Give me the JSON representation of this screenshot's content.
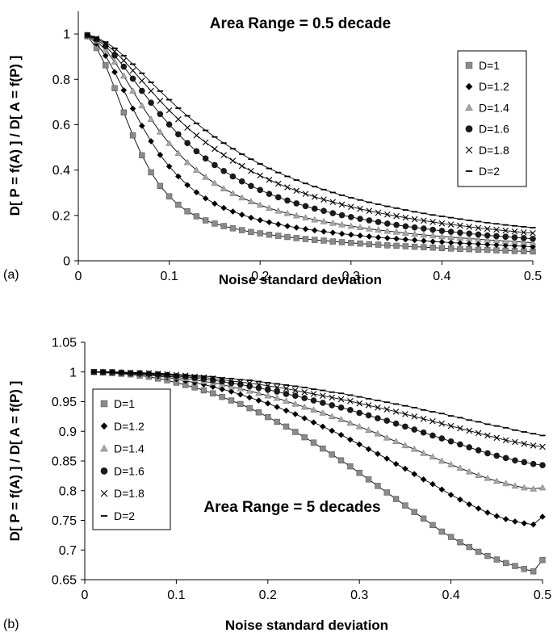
{
  "chart_data": [
    {
      "type": "scatter",
      "panel_label": "(a)",
      "title": "Area Range = 0.5 decade",
      "xlabel": "Noise standard deviation",
      "ylabel": "D[ P = f(A) ]  /  D[ A = f(P) ]",
      "xlim": [
        0,
        0.5
      ],
      "ylim": [
        0,
        1.1
      ],
      "xticks": [
        0,
        0.1,
        0.2,
        0.3,
        0.4,
        0.5
      ],
      "yticks": [
        0,
        0.2,
        0.4,
        0.6,
        0.8,
        1
      ],
      "xtick_labels": [
        "0",
        "0.1",
        "0.2",
        "0.3",
        "0.4",
        "0.5"
      ],
      "ytick_labels": [
        "0",
        "0.2",
        "0.4",
        "0.6",
        "0.8",
        "1"
      ],
      "grid": false,
      "fit_lines": true,
      "legend_position": "top-right",
      "x": [
        0.01,
        0.02,
        0.03,
        0.04,
        0.05,
        0.06,
        0.07,
        0.08,
        0.09,
        0.1,
        0.11,
        0.12,
        0.13,
        0.14,
        0.15,
        0.16,
        0.17,
        0.18,
        0.19,
        0.2,
        0.21,
        0.22,
        0.23,
        0.24,
        0.25,
        0.26,
        0.27,
        0.28,
        0.29,
        0.3,
        0.31,
        0.32,
        0.33,
        0.34,
        0.35,
        0.36,
        0.37,
        0.38,
        0.39,
        0.4,
        0.41,
        0.42,
        0.43,
        0.44,
        0.45,
        0.46,
        0.47,
        0.48,
        0.49,
        0.5
      ],
      "series": [
        {
          "name": "D=1",
          "marker": "square",
          "values": [
            0.99,
            0.938,
            0.862,
            0.761,
            0.654,
            0.553,
            0.465,
            0.39,
            0.33,
            0.284,
            0.247,
            0.218,
            0.196,
            0.178,
            0.164,
            0.153,
            0.143,
            0.135,
            0.127,
            0.121,
            0.115,
            0.11,
            0.105,
            0.1,
            0.096,
            0.092,
            0.089,
            0.085,
            0.082,
            0.079,
            0.076,
            0.073,
            0.071,
            0.068,
            0.066,
            0.064,
            0.062,
            0.06,
            0.058,
            0.056,
            0.054,
            0.052,
            0.051,
            0.049,
            0.048,
            0.046,
            0.045,
            0.043,
            0.042,
            0.041
          ]
        },
        {
          "name": "D=1.2",
          "marker": "diamond",
          "values": [
            0.993,
            0.958,
            0.904,
            0.832,
            0.752,
            0.671,
            0.595,
            0.527,
            0.467,
            0.416,
            0.372,
            0.334,
            0.302,
            0.275,
            0.252,
            0.233,
            0.217,
            0.203,
            0.19,
            0.179,
            0.17,
            0.161,
            0.153,
            0.146,
            0.14,
            0.134,
            0.129,
            0.124,
            0.119,
            0.115,
            0.111,
            0.107,
            0.103,
            0.1,
            0.097,
            0.094,
            0.091,
            0.088,
            0.085,
            0.083,
            0.08,
            0.078,
            0.076,
            0.074,
            0.072,
            0.07,
            0.068,
            0.066,
            0.064,
            0.062
          ]
        },
        {
          "name": "D=1.4",
          "marker": "triangle",
          "values": [
            0.994,
            0.969,
            0.93,
            0.877,
            0.815,
            0.749,
            0.684,
            0.624,
            0.568,
            0.518,
            0.474,
            0.434,
            0.4,
            0.369,
            0.342,
            0.318,
            0.297,
            0.278,
            0.261,
            0.246,
            0.232,
            0.22,
            0.209,
            0.199,
            0.19,
            0.181,
            0.173,
            0.166,
            0.159,
            0.153,
            0.147,
            0.141,
            0.136,
            0.131,
            0.127,
            0.122,
            0.118,
            0.114,
            0.111,
            0.107,
            0.104,
            0.101,
            0.098,
            0.095,
            0.092,
            0.09,
            0.087,
            0.085,
            0.082,
            0.08
          ]
        },
        {
          "name": "D=1.6",
          "marker": "circle",
          "values": [
            0.995,
            0.976,
            0.946,
            0.905,
            0.856,
            0.803,
            0.749,
            0.697,
            0.647,
            0.601,
            0.558,
            0.519,
            0.483,
            0.451,
            0.422,
            0.396,
            0.372,
            0.35,
            0.33,
            0.312,
            0.295,
            0.28,
            0.266,
            0.253,
            0.241,
            0.23,
            0.22,
            0.21,
            0.201,
            0.193,
            0.185,
            0.178,
            0.171,
            0.164,
            0.158,
            0.152,
            0.147,
            0.142,
            0.137,
            0.132,
            0.128,
            0.124,
            0.12,
            0.116,
            0.112,
            0.109,
            0.106,
            0.103,
            0.1,
            0.097
          ]
        },
        {
          "name": "D=1.8",
          "marker": "cross",
          "values": [
            0.996,
            0.98,
            0.956,
            0.923,
            0.883,
            0.839,
            0.794,
            0.749,
            0.705,
            0.663,
            0.624,
            0.587,
            0.553,
            0.522,
            0.493,
            0.466,
            0.441,
            0.418,
            0.396,
            0.376,
            0.357,
            0.34,
            0.324,
            0.309,
            0.295,
            0.282,
            0.27,
            0.259,
            0.248,
            0.238,
            0.229,
            0.22,
            0.212,
            0.204,
            0.197,
            0.19,
            0.183,
            0.177,
            0.171,
            0.165,
            0.16,
            0.155,
            0.15,
            0.145,
            0.141,
            0.137,
            0.133,
            0.129,
            0.125,
            0.122
          ]
        },
        {
          "name": "D=2",
          "marker": "dash",
          "values": [
            0.997,
            0.984,
            0.964,
            0.937,
            0.904,
            0.867,
            0.827,
            0.787,
            0.748,
            0.71,
            0.673,
            0.639,
            0.606,
            0.575,
            0.546,
            0.519,
            0.494,
            0.47,
            0.448,
            0.427,
            0.407,
            0.389,
            0.372,
            0.356,
            0.341,
            0.327,
            0.314,
            0.301,
            0.289,
            0.278,
            0.268,
            0.258,
            0.249,
            0.24,
            0.232,
            0.224,
            0.216,
            0.209,
            0.202,
            0.196,
            0.19,
            0.184,
            0.178,
            0.173,
            0.168,
            0.163,
            0.158,
            0.154,
            0.15,
            0.146
          ]
        }
      ]
    },
    {
      "type": "scatter",
      "panel_label": "(b)",
      "title": "Area Range = 5 decades",
      "xlabel": "Noise standard deviation",
      "ylabel": "D[ P = f(A) ]  /  D[ A = f(P) ]",
      "xlim": [
        0,
        0.5
      ],
      "ylim": [
        0.65,
        1.05
      ],
      "xticks": [
        0,
        0.1,
        0.2,
        0.3,
        0.4,
        0.5
      ],
      "yticks": [
        0.65,
        0.7,
        0.75,
        0.8,
        0.85,
        0.9,
        0.95,
        1,
        1.05
      ],
      "xtick_labels": [
        "0",
        "0.1",
        "0.2",
        "0.3",
        "0.4",
        "0.5"
      ],
      "ytick_labels": [
        "0.65",
        "0.7",
        "0.75",
        "0.8",
        "0.85",
        "0.9",
        "0.95",
        "1",
        "1.05"
      ],
      "grid": false,
      "fit_lines": true,
      "legend_position": "bottom-left",
      "x": [
        0.01,
        0.02,
        0.03,
        0.04,
        0.05,
        0.06,
        0.07,
        0.08,
        0.09,
        0.1,
        0.11,
        0.12,
        0.13,
        0.14,
        0.15,
        0.16,
        0.17,
        0.18,
        0.19,
        0.2,
        0.21,
        0.22,
        0.23,
        0.24,
        0.25,
        0.26,
        0.27,
        0.28,
        0.29,
        0.3,
        0.31,
        0.32,
        0.33,
        0.34,
        0.35,
        0.36,
        0.37,
        0.38,
        0.39,
        0.4,
        0.41,
        0.42,
        0.43,
        0.44,
        0.45,
        0.46,
        0.47,
        0.48,
        0.49,
        0.5
      ],
      "series": [
        {
          "name": "D=1",
          "marker": "square",
          "values": [
            1.0,
            0.999,
            0.998,
            0.997,
            0.996,
            0.994,
            0.992,
            0.989,
            0.986,
            0.982,
            0.978,
            0.974,
            0.969,
            0.964,
            0.958,
            0.952,
            0.946,
            0.939,
            0.932,
            0.924,
            0.916,
            0.908,
            0.899,
            0.89,
            0.881,
            0.871,
            0.861,
            0.851,
            0.841,
            0.83,
            0.819,
            0.808,
            0.797,
            0.786,
            0.775,
            0.764,
            0.753,
            0.742,
            0.731,
            0.722,
            0.713,
            0.705,
            0.697,
            0.69,
            0.684,
            0.678,
            0.673,
            0.668,
            0.664,
            0.683
          ]
        },
        {
          "name": "D=1.2",
          "marker": "diamond",
          "values": [
            1.0,
            1.0,
            0.999,
            0.998,
            0.997,
            0.996,
            0.995,
            0.993,
            0.991,
            0.988,
            0.985,
            0.982,
            0.979,
            0.975,
            0.971,
            0.967,
            0.962,
            0.957,
            0.952,
            0.947,
            0.941,
            0.935,
            0.929,
            0.922,
            0.915,
            0.908,
            0.901,
            0.894,
            0.886,
            0.878,
            0.87,
            0.862,
            0.854,
            0.845,
            0.837,
            0.828,
            0.819,
            0.811,
            0.802,
            0.793,
            0.785,
            0.777,
            0.77,
            0.763,
            0.757,
            0.752,
            0.748,
            0.745,
            0.743,
            0.756
          ]
        },
        {
          "name": "D=1.4",
          "marker": "triangle",
          "values": [
            1.0,
            1.0,
            0.999,
            0.999,
            0.998,
            0.997,
            0.996,
            0.995,
            0.993,
            0.991,
            0.989,
            0.987,
            0.984,
            0.982,
            0.979,
            0.975,
            0.972,
            0.968,
            0.964,
            0.96,
            0.956,
            0.951,
            0.946,
            0.941,
            0.936,
            0.931,
            0.925,
            0.92,
            0.914,
            0.908,
            0.902,
            0.896,
            0.889,
            0.883,
            0.876,
            0.87,
            0.863,
            0.857,
            0.85,
            0.844,
            0.838,
            0.832,
            0.826,
            0.821,
            0.816,
            0.812,
            0.808,
            0.805,
            0.803,
            0.805
          ]
        },
        {
          "name": "D=1.6",
          "marker": "circle",
          "values": [
            1.0,
            1.0,
            1.0,
            0.999,
            0.998,
            0.998,
            0.997,
            0.996,
            0.995,
            0.993,
            0.992,
            0.99,
            0.988,
            0.986,
            0.984,
            0.981,
            0.979,
            0.976,
            0.973,
            0.97,
            0.967,
            0.963,
            0.96,
            0.956,
            0.952,
            0.948,
            0.944,
            0.94,
            0.936,
            0.931,
            0.927,
            0.922,
            0.918,
            0.913,
            0.908,
            0.903,
            0.898,
            0.893,
            0.888,
            0.883,
            0.878,
            0.873,
            0.868,
            0.863,
            0.859,
            0.855,
            0.851,
            0.848,
            0.845,
            0.843
          ]
        },
        {
          "name": "D=1.8",
          "marker": "cross",
          "values": [
            1.0,
            1.0,
            1.0,
            0.999,
            0.999,
            0.998,
            0.998,
            0.997,
            0.996,
            0.995,
            0.994,
            0.992,
            0.991,
            0.989,
            0.987,
            0.985,
            0.983,
            0.981,
            0.979,
            0.977,
            0.974,
            0.972,
            0.969,
            0.966,
            0.963,
            0.96,
            0.957,
            0.954,
            0.951,
            0.947,
            0.944,
            0.94,
            0.937,
            0.933,
            0.929,
            0.925,
            0.921,
            0.917,
            0.913,
            0.909,
            0.905,
            0.901,
            0.897,
            0.893,
            0.889,
            0.885,
            0.882,
            0.879,
            0.876,
            0.874
          ]
        },
        {
          "name": "D=2",
          "marker": "dash",
          "values": [
            1.0,
            1.0,
            1.0,
            1.0,
            0.999,
            0.999,
            0.998,
            0.998,
            0.997,
            0.996,
            0.995,
            0.994,
            0.993,
            0.992,
            0.99,
            0.989,
            0.987,
            0.986,
            0.984,
            0.982,
            0.98,
            0.978,
            0.976,
            0.974,
            0.971,
            0.969,
            0.966,
            0.964,
            0.961,
            0.958,
            0.955,
            0.952,
            0.949,
            0.946,
            0.943,
            0.94,
            0.936,
            0.933,
            0.93,
            0.926,
            0.923,
            0.919,
            0.916,
            0.912,
            0.909,
            0.906,
            0.902,
            0.899,
            0.896,
            0.893
          ]
        }
      ]
    }
  ]
}
